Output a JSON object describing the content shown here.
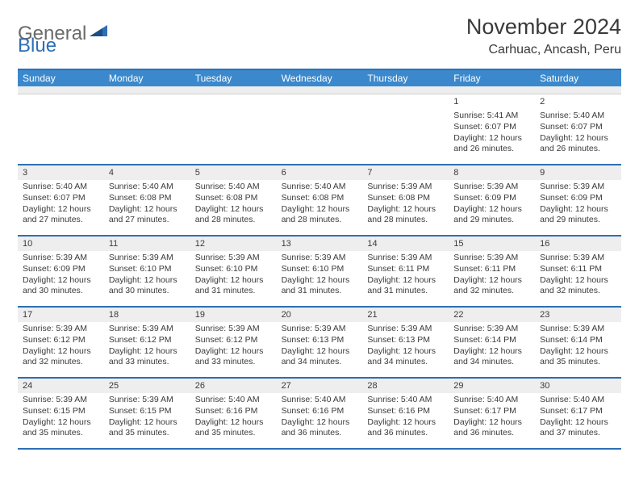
{
  "logo": {
    "general": "General",
    "blue": "Blue"
  },
  "title": "November 2024",
  "location": "Carhuac, Ancash, Peru",
  "weekdays": [
    "Sunday",
    "Monday",
    "Tuesday",
    "Wednesday",
    "Thursday",
    "Friday",
    "Saturday"
  ],
  "colors": {
    "headerBar": "#3b89cc",
    "rule": "#2d6fb5",
    "grayRow": "#eeeeee",
    "text": "#3a3a3a"
  },
  "weeks": [
    [
      null,
      null,
      null,
      null,
      null,
      {
        "n": "1",
        "sr": "5:41 AM",
        "ss": "6:07 PM",
        "dl": "12 hours and 26 minutes."
      },
      {
        "n": "2",
        "sr": "5:40 AM",
        "ss": "6:07 PM",
        "dl": "12 hours and 26 minutes."
      }
    ],
    [
      {
        "n": "3",
        "sr": "5:40 AM",
        "ss": "6:07 PM",
        "dl": "12 hours and 27 minutes."
      },
      {
        "n": "4",
        "sr": "5:40 AM",
        "ss": "6:08 PM",
        "dl": "12 hours and 27 minutes."
      },
      {
        "n": "5",
        "sr": "5:40 AM",
        "ss": "6:08 PM",
        "dl": "12 hours and 28 minutes."
      },
      {
        "n": "6",
        "sr": "5:40 AM",
        "ss": "6:08 PM",
        "dl": "12 hours and 28 minutes."
      },
      {
        "n": "7",
        "sr": "5:39 AM",
        "ss": "6:08 PM",
        "dl": "12 hours and 28 minutes."
      },
      {
        "n": "8",
        "sr": "5:39 AM",
        "ss": "6:09 PM",
        "dl": "12 hours and 29 minutes."
      },
      {
        "n": "9",
        "sr": "5:39 AM",
        "ss": "6:09 PM",
        "dl": "12 hours and 29 minutes."
      }
    ],
    [
      {
        "n": "10",
        "sr": "5:39 AM",
        "ss": "6:09 PM",
        "dl": "12 hours and 30 minutes."
      },
      {
        "n": "11",
        "sr": "5:39 AM",
        "ss": "6:10 PM",
        "dl": "12 hours and 30 minutes."
      },
      {
        "n": "12",
        "sr": "5:39 AM",
        "ss": "6:10 PM",
        "dl": "12 hours and 31 minutes."
      },
      {
        "n": "13",
        "sr": "5:39 AM",
        "ss": "6:10 PM",
        "dl": "12 hours and 31 minutes."
      },
      {
        "n": "14",
        "sr": "5:39 AM",
        "ss": "6:11 PM",
        "dl": "12 hours and 31 minutes."
      },
      {
        "n": "15",
        "sr": "5:39 AM",
        "ss": "6:11 PM",
        "dl": "12 hours and 32 minutes."
      },
      {
        "n": "16",
        "sr": "5:39 AM",
        "ss": "6:11 PM",
        "dl": "12 hours and 32 minutes."
      }
    ],
    [
      {
        "n": "17",
        "sr": "5:39 AM",
        "ss": "6:12 PM",
        "dl": "12 hours and 32 minutes."
      },
      {
        "n": "18",
        "sr": "5:39 AM",
        "ss": "6:12 PM",
        "dl": "12 hours and 33 minutes."
      },
      {
        "n": "19",
        "sr": "5:39 AM",
        "ss": "6:12 PM",
        "dl": "12 hours and 33 minutes."
      },
      {
        "n": "20",
        "sr": "5:39 AM",
        "ss": "6:13 PM",
        "dl": "12 hours and 34 minutes."
      },
      {
        "n": "21",
        "sr": "5:39 AM",
        "ss": "6:13 PM",
        "dl": "12 hours and 34 minutes."
      },
      {
        "n": "22",
        "sr": "5:39 AM",
        "ss": "6:14 PM",
        "dl": "12 hours and 34 minutes."
      },
      {
        "n": "23",
        "sr": "5:39 AM",
        "ss": "6:14 PM",
        "dl": "12 hours and 35 minutes."
      }
    ],
    [
      {
        "n": "24",
        "sr": "5:39 AM",
        "ss": "6:15 PM",
        "dl": "12 hours and 35 minutes."
      },
      {
        "n": "25",
        "sr": "5:39 AM",
        "ss": "6:15 PM",
        "dl": "12 hours and 35 minutes."
      },
      {
        "n": "26",
        "sr": "5:40 AM",
        "ss": "6:16 PM",
        "dl": "12 hours and 35 minutes."
      },
      {
        "n": "27",
        "sr": "5:40 AM",
        "ss": "6:16 PM",
        "dl": "12 hours and 36 minutes."
      },
      {
        "n": "28",
        "sr": "5:40 AM",
        "ss": "6:16 PM",
        "dl": "12 hours and 36 minutes."
      },
      {
        "n": "29",
        "sr": "5:40 AM",
        "ss": "6:17 PM",
        "dl": "12 hours and 36 minutes."
      },
      {
        "n": "30",
        "sr": "5:40 AM",
        "ss": "6:17 PM",
        "dl": "12 hours and 37 minutes."
      }
    ]
  ],
  "labels": {
    "sunrise": "Sunrise: ",
    "sunset": "Sunset: ",
    "daylight": "Daylight: "
  }
}
